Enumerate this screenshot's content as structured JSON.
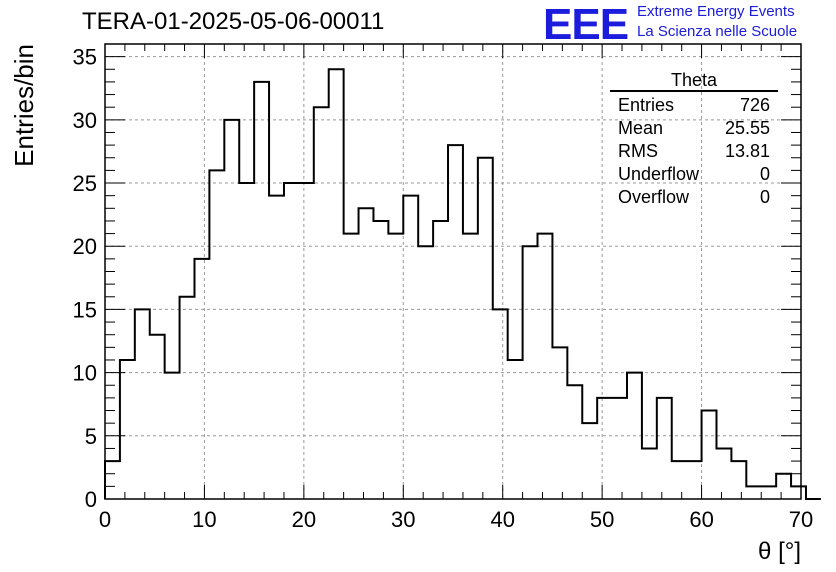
{
  "title": "TERA-01-2025-05-06-00011",
  "logo": {
    "mark": "EEE",
    "line1": "Extreme Energy Events",
    "line2": "La Scienza nelle Scuole"
  },
  "stats_box": {
    "name": "Theta",
    "rows": [
      {
        "label": "Entries",
        "value": "726"
      },
      {
        "label": "Mean",
        "value": "25.55"
      },
      {
        "label": "RMS",
        "value": "13.81"
      },
      {
        "label": "Underflow",
        "value": "0"
      },
      {
        "label": "Overflow",
        "value": "0"
      }
    ]
  },
  "colors": {
    "line": "#000000",
    "grid": "#999999",
    "logo": "#1c1cdc"
  },
  "chart_data": {
    "type": "bar",
    "style": "step-histogram",
    "xlabel": "θ [°]",
    "ylabel": "Entries/bin",
    "xlim": [
      0,
      70
    ],
    "ylim": [
      0,
      36
    ],
    "grid": true,
    "x_ticks": [
      0,
      10,
      20,
      30,
      40,
      50,
      60,
      70
    ],
    "y_ticks": [
      0,
      5,
      10,
      15,
      20,
      25,
      30,
      35
    ],
    "bin_width": 1.5,
    "values": [
      3,
      11,
      15,
      13,
      10,
      16,
      19,
      26,
      30,
      25,
      33,
      24,
      25,
      25,
      31,
      34,
      21,
      23,
      22,
      21,
      24,
      20,
      22,
      28,
      21,
      27,
      15,
      11,
      20,
      21,
      12,
      9,
      6,
      8,
      8,
      10,
      4,
      8,
      3,
      3,
      7,
      4,
      3,
      1,
      1,
      2,
      1,
      0
    ]
  }
}
